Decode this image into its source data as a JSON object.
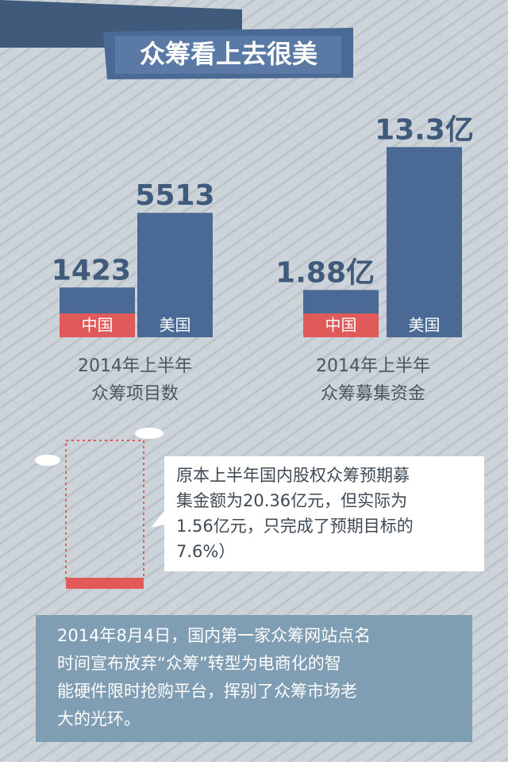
{
  "title": "众筹看上去很美",
  "chart_data": [
    {
      "type": "bar",
      "categories": [
        "中国",
        "美国"
      ],
      "values": [
        1423,
        5513
      ],
      "value_labels": [
        "1423",
        "5513"
      ],
      "color": "#4a6a95",
      "category_colors": [
        "#e05a5a",
        "#4a6a95"
      ],
      "ylim": [
        0,
        7000
      ],
      "caption": [
        "2014年上半年",
        "众筹项目数"
      ]
    },
    {
      "type": "bar",
      "categories": [
        "中国",
        "美国"
      ],
      "values": [
        1.88,
        13.3
      ],
      "value_labels": [
        "1.88亿",
        "13.3亿"
      ],
      "color": "#4a6a95",
      "category_colors": [
        "#e05a5a",
        "#4a6a95"
      ],
      "ylim": [
        0,
        17
      ],
      "caption": [
        "2014年上半年",
        "众筹募集资金"
      ]
    }
  ],
  "callout": [
    "原本上半年国内股权众筹预期募",
    "集金额为20.36亿元，但实际为",
    "1.56亿元，只完成了预期目标的",
    "7.6%）"
  ],
  "footer": [
    "2014年8月4日，国内第一家众筹网站点名",
    "时间宣布放弃“众筹”转型为电商化的智",
    "能硬件限时抢购平台，挥别了众筹市场老",
    "大的光环。"
  ]
}
